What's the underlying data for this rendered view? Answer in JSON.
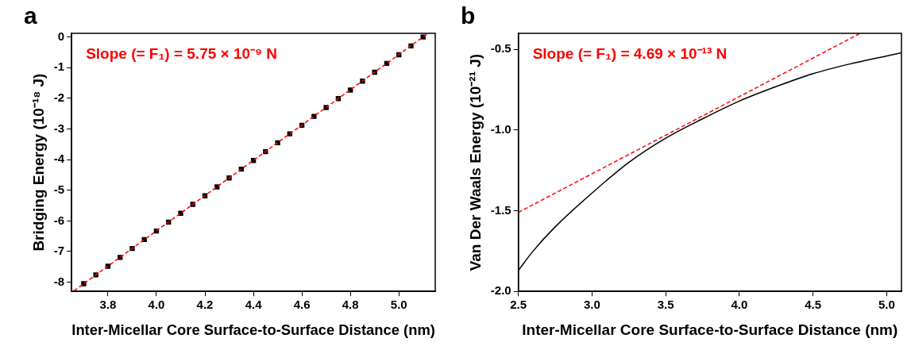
{
  "chart_data": [
    {
      "type": "scatter",
      "title": "a",
      "xlabel": "Inter-Micellar Core Surface-to-Surface Distance (nm)",
      "ylabel": "Bridging Energy (10⁻¹⁸ J)",
      "annotations": [
        "Slope (= F₁) = 5.75 × 10⁻⁹ N"
      ],
      "xlim": [
        3.65,
        5.15
      ],
      "ylim": [
        -8.3,
        0.12
      ],
      "xticks": [
        3.8,
        {
          "value": 4.0,
          "label": "4.0"
        },
        4.2,
        4.4,
        4.6,
        4.8,
        {
          "value": 5.0,
          "label": "5.0"
        }
      ],
      "yticks": [
        -8,
        -7,
        -6,
        -5,
        -4,
        -3,
        -2,
        -1,
        0
      ],
      "grid": false,
      "legend": false,
      "marker": "square",
      "series": [
        {
          "type": "line",
          "color": "#ff0000",
          "line_style": "dashed",
          "marker": "none",
          "x": [
            3.66,
            5.12
          ],
          "values": [
            -8.28,
            0.12
          ]
        },
        {
          "color": "#000000",
          "x": [
            3.7,
            3.75,
            3.8,
            3.85,
            3.9,
            3.95,
            4.0,
            4.05,
            4.1,
            4.15,
            4.2,
            4.25,
            4.3,
            4.35,
            4.4,
            4.45,
            4.5,
            4.55,
            4.6,
            4.65,
            4.7,
            4.75,
            4.8,
            4.85,
            4.9,
            4.95,
            5.0,
            5.05,
            5.1
          ],
          "values": [
            -8.05,
            -7.76,
            -7.48,
            -7.19,
            -6.9,
            -6.61,
            -6.33,
            -6.04,
            -5.75,
            -5.46,
            -5.18,
            -4.89,
            -4.6,
            -4.31,
            -4.03,
            -3.74,
            -3.45,
            -3.16,
            -2.88,
            -2.59,
            -2.3,
            -2.01,
            -1.73,
            -1.44,
            -1.15,
            -0.86,
            -0.58,
            -0.29,
            0
          ]
        }
      ]
    },
    {
      "type": "line",
      "title": "b",
      "xlabel": "Inter-Micellar Core Surface-to-Surface Distance (nm)",
      "ylabel": "Van Der Waals Energy (10⁻²¹ J)",
      "annotations": [
        "Slope (= F₁) = 4.69 × 10⁻¹³ N"
      ],
      "xlim": [
        2.5,
        5.1
      ],
      "ylim": [
        -2.0,
        -0.4
      ],
      "xticks": [
        {
          "value": 2.5,
          "label": "2.5"
        },
        {
          "value": 3.0,
          "label": "3.0"
        },
        {
          "value": 3.5,
          "label": "3.5"
        },
        {
          "value": 4.0,
          "label": "4.0"
        },
        {
          "value": 4.5,
          "label": "4.5"
        },
        {
          "value": 5.0,
          "label": "5.0"
        }
      ],
      "yticks": [
        {
          "value": -2.0,
          "label": "-2.0"
        },
        {
          "value": -1.5,
          "label": "-1.5"
        },
        {
          "value": -1.0,
          "label": "-1.0"
        },
        {
          "value": -0.5,
          "label": "-0.5"
        }
      ],
      "grid": false,
      "legend": false,
      "marker": "none",
      "series": [
        {
          "color": "#ff0000",
          "line_style": "dashed",
          "x": [
            2.5,
            4.82
          ],
          "values": [
            -1.51,
            -0.4
          ]
        },
        {
          "color": "#000000",
          "line_style": "solid",
          "x": [
            2.5,
            2.6,
            2.75,
            3.0,
            3.25,
            3.5,
            3.75,
            4.0,
            4.25,
            4.5,
            4.75,
            5.0,
            5.1
          ],
          "values": [
            -1.87,
            -1.75,
            -1.6,
            -1.39,
            -1.2,
            -1.05,
            -0.93,
            -0.82,
            -0.73,
            -0.65,
            -0.59,
            -0.54,
            -0.52
          ]
        }
      ]
    }
  ]
}
